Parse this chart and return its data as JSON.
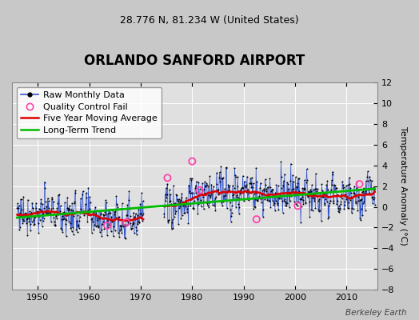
{
  "title": "ORLANDO SANFORD AIRPORT",
  "subtitle": "28.776 N, 81.234 W (United States)",
  "ylabel": "Temperature Anomaly (°C)",
  "watermark": "Berkeley Earth",
  "xlim": [
    1945,
    2016
  ],
  "ylim": [
    -8,
    12
  ],
  "yticks": [
    -8,
    -6,
    -4,
    -2,
    0,
    2,
    4,
    6,
    8,
    10,
    12
  ],
  "xticks": [
    1950,
    1960,
    1970,
    1980,
    1990,
    2000,
    2010
  ],
  "bg_color": "#c8c8c8",
  "plot_bg_color": "#e0e0e0",
  "grid_color": "#ffffff",
  "raw_line_color": "#3355cc",
  "raw_dot_color": "#000000",
  "qc_fail_color": "#ff44aa",
  "moving_avg_color": "#dd0000",
  "trend_color": "#00bb00",
  "legend_fontsize": 8,
  "title_fontsize": 12,
  "subtitle_fontsize": 9,
  "seed": 77
}
